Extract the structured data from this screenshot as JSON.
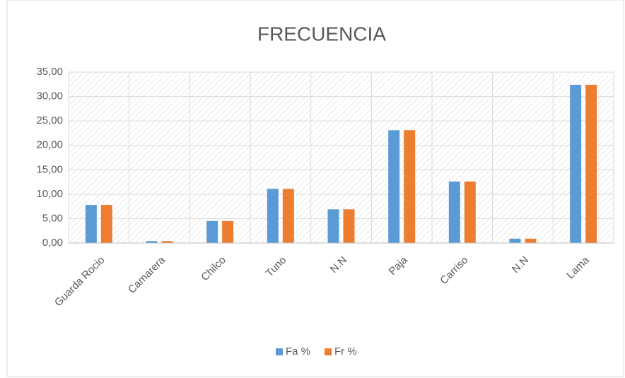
{
  "chart_data": {
    "type": "bar",
    "title": "FRECUENCIA",
    "categories": [
      "Guarda Rocio",
      "Camarera",
      "Chilco",
      "Tuno",
      "N.N",
      "Paja",
      "Carriso",
      "N.N",
      "Lama"
    ],
    "series": [
      {
        "name": "Fa %",
        "color": "#5b9bd5",
        "values": [
          7.8,
          0.4,
          4.5,
          11.1,
          6.9,
          23.1,
          12.6,
          0.9,
          32.4
        ]
      },
      {
        "name": "Fr %",
        "color": "#ed7d31",
        "values": [
          7.8,
          0.4,
          4.5,
          11.1,
          6.9,
          23.1,
          12.6,
          0.9,
          32.4
        ]
      }
    ],
    "ylim": [
      0,
      35
    ],
    "yticks": [
      {
        "value": 0,
        "label": "0,00"
      },
      {
        "value": 5,
        "label": "5,00"
      },
      {
        "value": 10,
        "label": "10,00"
      },
      {
        "value": 15,
        "label": "15,00"
      },
      {
        "value": 20,
        "label": "20,00"
      },
      {
        "value": 25,
        "label": "25,00"
      },
      {
        "value": 30,
        "label": "30,00"
      },
      {
        "value": 35,
        "label": "35,00"
      }
    ],
    "grid": true,
    "legend": "bottom"
  }
}
